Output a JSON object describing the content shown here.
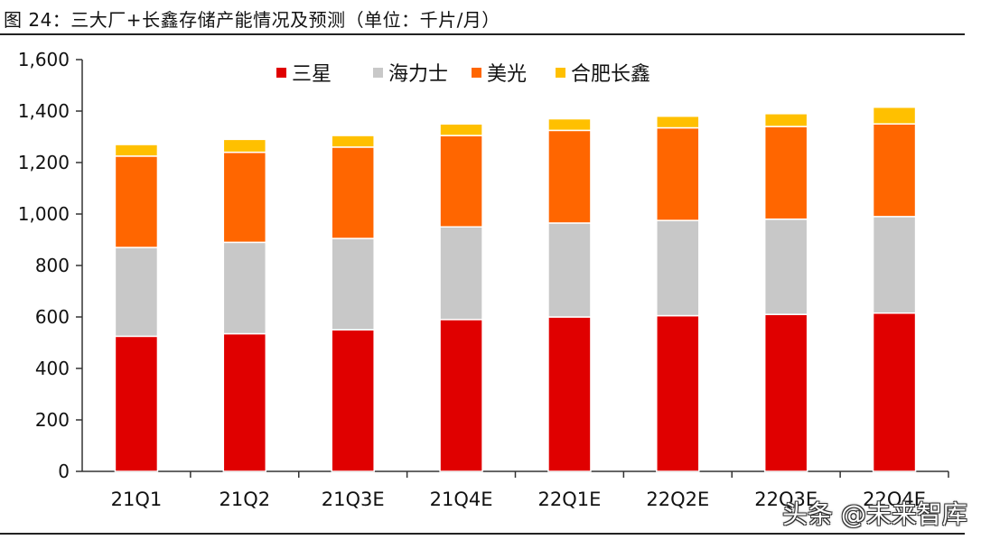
{
  "figure": {
    "title": "图 24：三大厂+长鑫存储产能情况及预测（单位：千片/月）",
    "watermark": "头条 @未来智库"
  },
  "chart_data": {
    "type": "bar",
    "stacked": true,
    "title": "三大厂+长鑫存储产能情况及预测",
    "ylabel": "千片/月",
    "xlabel": "",
    "ylim": [
      0,
      1600
    ],
    "yticks": [
      0,
      200,
      400,
      600,
      800,
      1000,
      1200,
      1400,
      1600
    ],
    "ytick_labels": [
      "0",
      "200",
      "400",
      "600",
      "800",
      "1,000",
      "1,200",
      "1,400",
      "1,600"
    ],
    "categories": [
      "21Q1",
      "21Q2",
      "21Q3E",
      "21Q4E",
      "22Q1E",
      "22Q2E",
      "22Q3E",
      "22Q4E"
    ],
    "legend_position": "top",
    "series": [
      {
        "name": "三星",
        "color": "#e00000",
        "values": [
          525,
          535,
          550,
          590,
          600,
          605,
          610,
          615
        ]
      },
      {
        "name": "海力士",
        "color": "#c8c8c8",
        "values": [
          345,
          355,
          355,
          360,
          365,
          370,
          370,
          375
        ]
      },
      {
        "name": "美光",
        "color": "#ff6600",
        "values": [
          355,
          350,
          355,
          355,
          360,
          360,
          360,
          360
        ]
      },
      {
        "name": "合肥长鑫",
        "color": "#ffc000",
        "values": [
          45,
          50,
          45,
          45,
          45,
          45,
          50,
          65
        ]
      }
    ]
  }
}
